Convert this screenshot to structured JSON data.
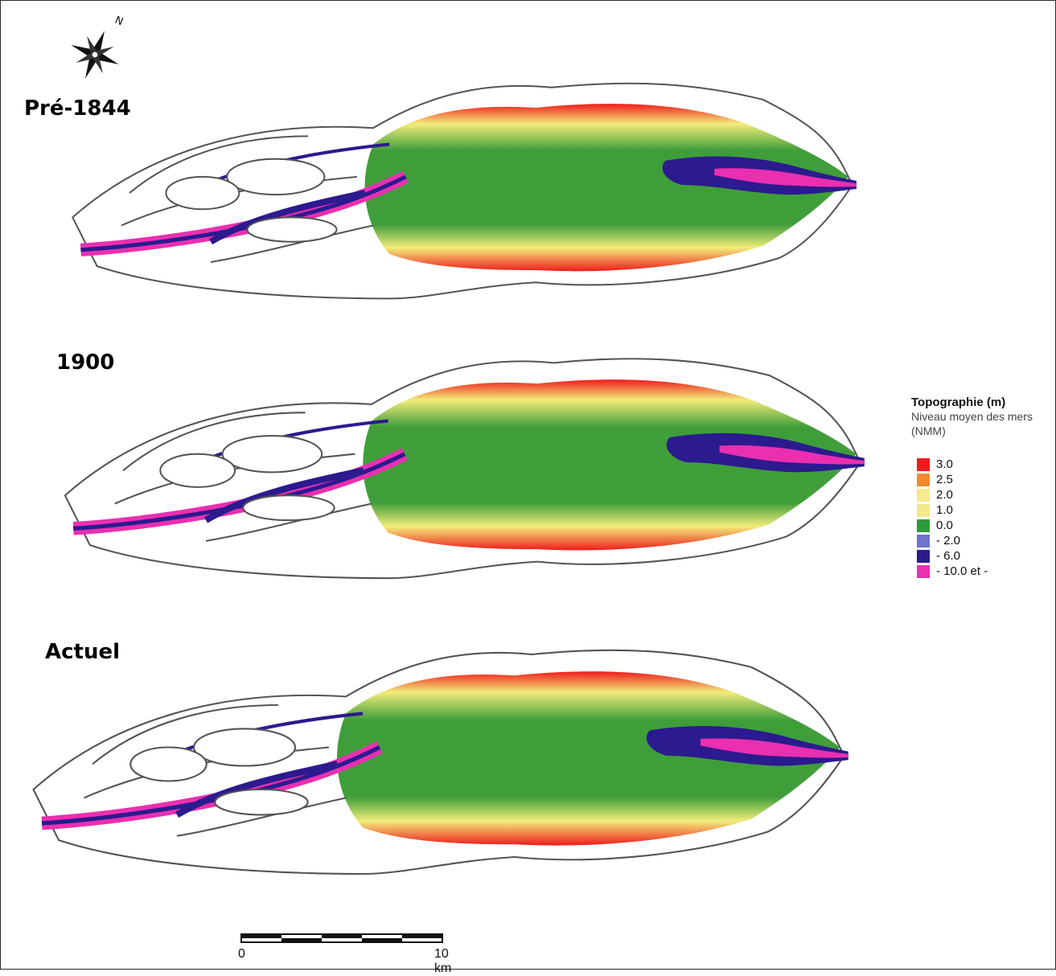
{
  "periods": [
    {
      "id": "pre1844",
      "label": "Pré-1844"
    },
    {
      "id": "y1900",
      "label": "1900"
    },
    {
      "id": "actuel",
      "label": "Actuel"
    }
  ],
  "legend": {
    "title": "Topographie  (m)",
    "subtitle": "Niveau moyen des mers (NMM)",
    "items": [
      {
        "value": "3.0",
        "color": "#ee1c1c"
      },
      {
        "value": "2.5",
        "color": "#f28a2e"
      },
      {
        "value": "2.0",
        "color": "#f4e98c"
      },
      {
        "value": "1.0",
        "color": "#f4e98c"
      },
      {
        "value": "0.0",
        "color": "#2e9a3a"
      },
      {
        "value": "- 2.0",
        "color": "#6f74c9"
      },
      {
        "value": "- 6.0",
        "color": "#2c1a8f"
      },
      {
        "value": "- 10.0 et -",
        "color": "#ea2fb0"
      }
    ]
  },
  "scale_bar": {
    "start_label": "0",
    "end_label": "10 km"
  },
  "north_label": "N",
  "colors": {
    "red": "#ee1c1c",
    "yellow": "#f2ec7a",
    "green": "#3f9e3a",
    "blue": "#6f74c9",
    "navy": "#2c1a8f",
    "magenta": "#ea2fb0"
  }
}
